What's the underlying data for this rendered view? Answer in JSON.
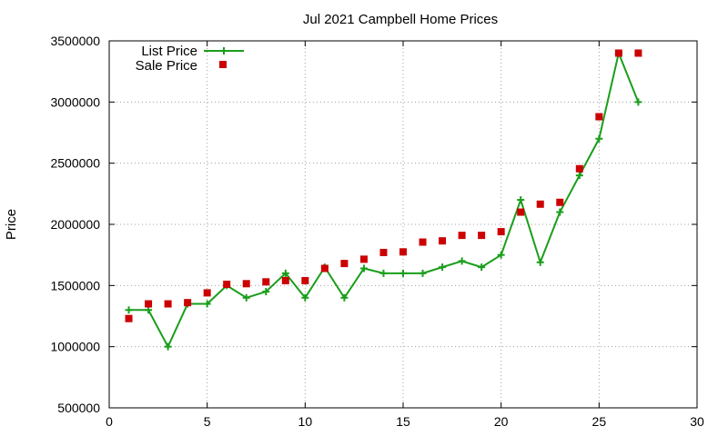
{
  "chart_data": {
    "type": "line",
    "title": "Jul 2021 Campbell Home Prices",
    "xlabel": "",
    "ylabel": "Price",
    "xlim": [
      0,
      30
    ],
    "ylim": [
      500000,
      3500000
    ],
    "x_ticks": [
      0,
      5,
      10,
      15,
      20,
      25,
      30
    ],
    "y_ticks": [
      500000,
      1000000,
      1500000,
      2000000,
      2500000,
      3000000,
      3500000
    ],
    "grid": true,
    "legend_position": "top-left",
    "series": [
      {
        "name": "List Price",
        "style": "linespoints",
        "marker": "plus",
        "color": "#1a9e1a",
        "x": [
          1,
          2,
          3,
          4,
          5,
          6,
          7,
          8,
          9,
          10,
          11,
          12,
          13,
          14,
          15,
          16,
          17,
          18,
          19,
          20,
          21,
          22,
          23,
          24,
          25,
          26,
          27
        ],
        "values": [
          1300000,
          1300000,
          1000000,
          1350000,
          1350000,
          1500000,
          1400000,
          1450000,
          1600000,
          1400000,
          1650000,
          1400000,
          1640000,
          1600000,
          1600000,
          1600000,
          1650000,
          1700000,
          1650000,
          1750000,
          2200000,
          1690000,
          2100000,
          2400000,
          2700000,
          3400000,
          3000000
        ]
      },
      {
        "name": "Sale Price",
        "style": "points",
        "marker": "square",
        "color": "#cc0000",
        "x": [
          1,
          2,
          3,
          4,
          5,
          6,
          7,
          8,
          9,
          10,
          11,
          12,
          13,
          14,
          15,
          16,
          17,
          18,
          19,
          20,
          21,
          22,
          23,
          24,
          25,
          26,
          27
        ],
        "values": [
          1230000,
          1350000,
          1350000,
          1360000,
          1440000,
          1510000,
          1515000,
          1530000,
          1540000,
          1540000,
          1640000,
          1680000,
          1715000,
          1770000,
          1775000,
          1855000,
          1865000,
          1910000,
          1910000,
          1940000,
          2100000,
          2165000,
          2180000,
          2455000,
          2880000,
          3400000,
          3400000
        ]
      }
    ]
  }
}
